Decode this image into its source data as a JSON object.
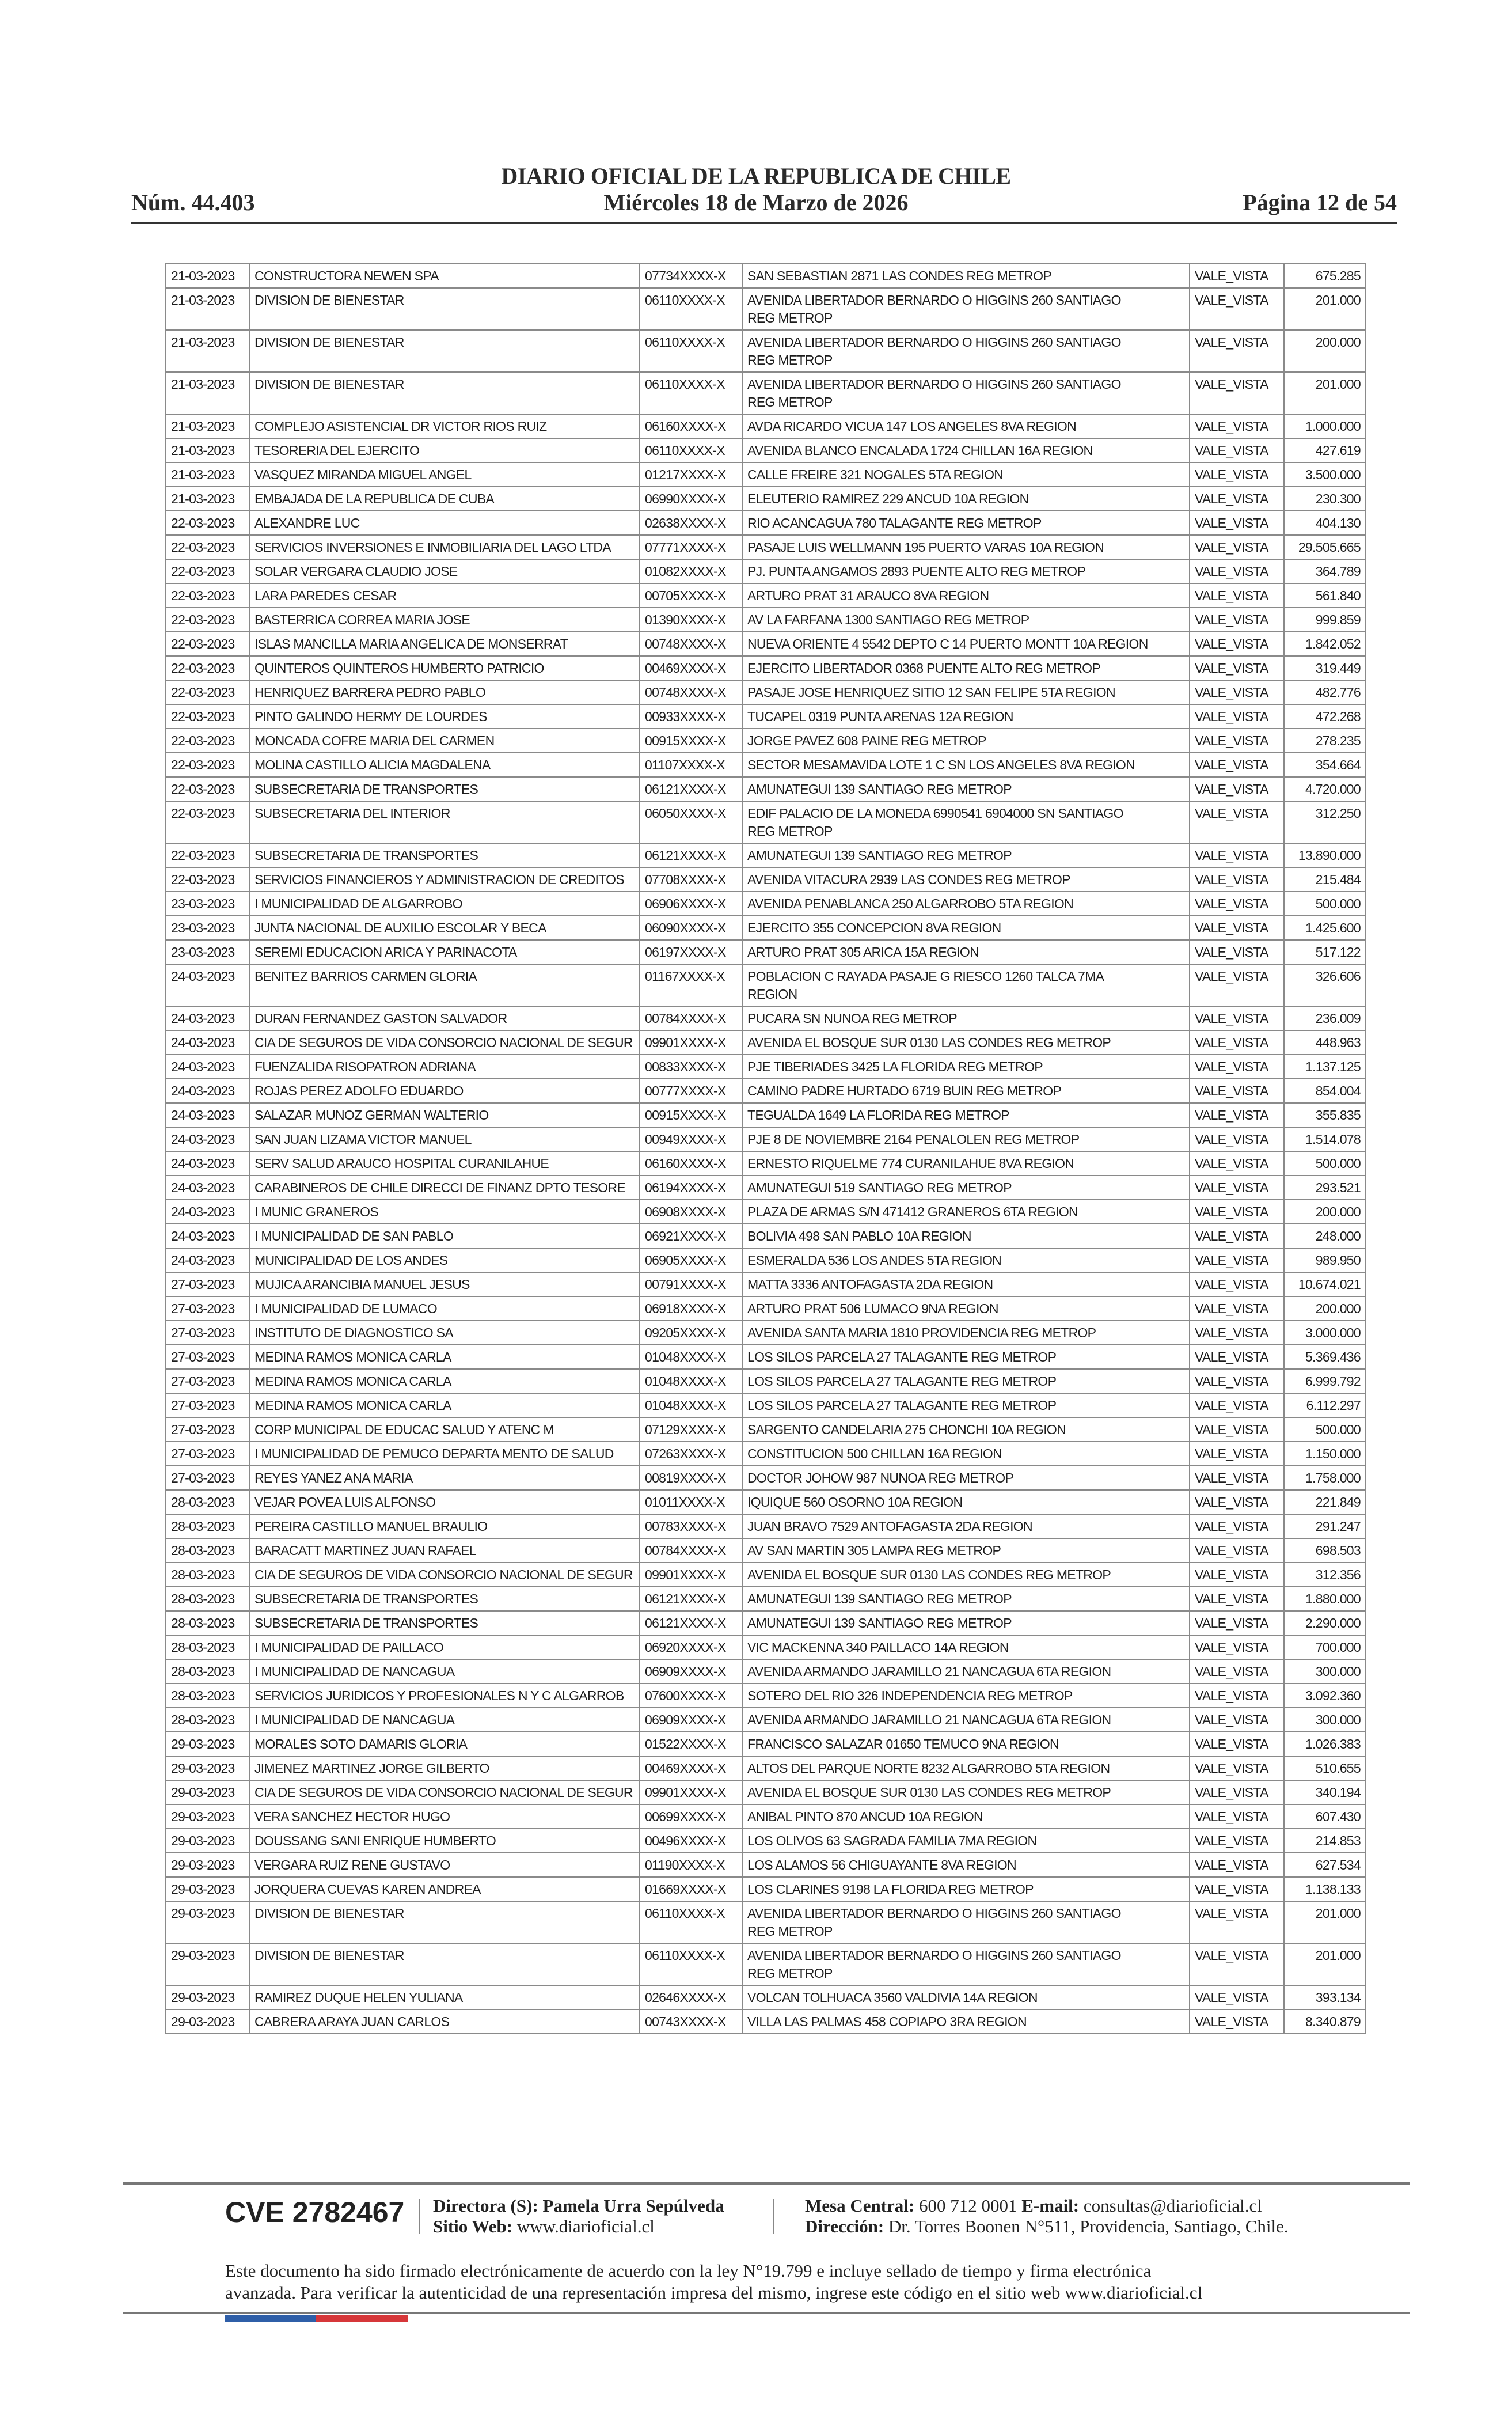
{
  "header": {
    "title": "DIARIO OFICIAL DE LA REPUBLICA DE CHILE",
    "issue": "Núm. 44.403",
    "date": "Miércoles 18 de Marzo de 2026",
    "page": "Página 12 de 54"
  },
  "table": {
    "rows": [
      [
        "21-03-2023",
        "CONSTRUCTORA NEWEN SPA",
        "07734XXXX-X",
        "SAN SEBASTIAN 2871 LAS CONDES REG METROP",
        "VALE_VISTA",
        "675.285"
      ],
      [
        "21-03-2023",
        "DIVISION DE BIENESTAR",
        "06110XXXX-X",
        "AVENIDA LIBERTADOR BERNARDO O HIGGINS 260 SANTIAGO REG METROP",
        "VALE_VISTA",
        "201.000"
      ],
      [
        "21-03-2023",
        "DIVISION DE BIENESTAR",
        "06110XXXX-X",
        "AVENIDA LIBERTADOR BERNARDO O HIGGINS 260 SANTIAGO REG METROP",
        "VALE_VISTA",
        "200.000"
      ],
      [
        "21-03-2023",
        "DIVISION DE BIENESTAR",
        "06110XXXX-X",
        "AVENIDA LIBERTADOR BERNARDO O HIGGINS 260 SANTIAGO REG METROP",
        "VALE_VISTA",
        "201.000"
      ],
      [
        "21-03-2023",
        "COMPLEJO ASISTENCIAL DR VICTOR RIOS RUIZ",
        "06160XXXX-X",
        "AVDA RICARDO VICUA 147 LOS ANGELES 8VA REGION",
        "VALE_VISTA",
        "1.000.000"
      ],
      [
        "21-03-2023",
        "TESORERIA DEL EJERCITO",
        "06110XXXX-X",
        "AVENIDA BLANCO ENCALADA 1724 CHILLAN 16A REGION",
        "VALE_VISTA",
        "427.619"
      ],
      [
        "21-03-2023",
        "VASQUEZ MIRANDA MIGUEL ANGEL",
        "01217XXXX-X",
        "CALLE FREIRE 321 NOGALES 5TA REGION",
        "VALE_VISTA",
        "3.500.000"
      ],
      [
        "21-03-2023",
        "EMBAJADA DE LA REPUBLICA DE CUBA",
        "06990XXXX-X",
        "ELEUTERIO RAMIREZ 229 ANCUD 10A REGION",
        "VALE_VISTA",
        "230.300"
      ],
      [
        "22-03-2023",
        "ALEXANDRE  LUC",
        "02638XXXX-X",
        "RIO ACANCAGUA 780 TALAGANTE REG METROP",
        "VALE_VISTA",
        "404.130"
      ],
      [
        "22-03-2023",
        "SERVICIOS INVERSIONES E INMOBILIARIA DEL LAGO LTDA",
        "07771XXXX-X",
        "PASAJE LUIS WELLMANN 195 PUERTO VARAS 10A REGION",
        "VALE_VISTA",
        "29.505.665"
      ],
      [
        "22-03-2023",
        "SOLAR VERGARA CLAUDIO JOSE",
        "01082XXXX-X",
        "PJ. PUNTA ANGAMOS 2893 PUENTE ALTO REG METROP",
        "VALE_VISTA",
        "364.789"
      ],
      [
        "22-03-2023",
        "LARA PAREDES CESAR",
        "00705XXXX-X",
        "ARTURO PRAT 31 ARAUCO 8VA REGION",
        "VALE_VISTA",
        "561.840"
      ],
      [
        "22-03-2023",
        "BASTERRICA CORREA MARIA JOSE",
        "01390XXXX-X",
        "AV LA FARFANA 1300 SANTIAGO REG METROP",
        "VALE_VISTA",
        "999.859"
      ],
      [
        "22-03-2023",
        "ISLAS MANCILLA MARIA ANGELICA DE MONSERRAT",
        "00748XXXX-X",
        "NUEVA ORIENTE 4 5542 DEPTO C 14 PUERTO MONTT 10A REGION",
        "VALE_VISTA",
        "1.842.052"
      ],
      [
        "22-03-2023",
        "QUINTEROS QUINTEROS HUMBERTO PATRICIO",
        "00469XXXX-X",
        "EJERCITO LIBERTADOR 0368 PUENTE ALTO REG METROP",
        "VALE_VISTA",
        "319.449"
      ],
      [
        "22-03-2023",
        "HENRIQUEZ BARRERA PEDRO PABLO",
        "00748XXXX-X",
        "PASAJE JOSE HENRIQUEZ SITIO 12 SAN FELIPE 5TA REGION",
        "VALE_VISTA",
        "482.776"
      ],
      [
        "22-03-2023",
        "PINTO GALINDO HERMY DE LOURDES",
        "00933XXXX-X",
        "TUCAPEL 0319 PUNTA ARENAS 12A REGION",
        "VALE_VISTA",
        "472.268"
      ],
      [
        "22-03-2023",
        "MONCADA COFRE MARIA DEL CARMEN",
        "00915XXXX-X",
        "JORGE PAVEZ 608 PAINE REG METROP",
        "VALE_VISTA",
        "278.235"
      ],
      [
        "22-03-2023",
        "MOLINA CASTILLO ALICIA MAGDALENA",
        "01107XXXX-X",
        "SECTOR MESAMAVIDA LOTE 1 C SN LOS ANGELES 8VA REGION",
        "VALE_VISTA",
        "354.664"
      ],
      [
        "22-03-2023",
        "SUBSECRETARIA DE TRANSPORTES",
        "06121XXXX-X",
        "AMUNATEGUI 139 SANTIAGO REG METROP",
        "VALE_VISTA",
        "4.720.000"
      ],
      [
        "22-03-2023",
        "SUBSECRETARIA DEL INTERIOR",
        "06050XXXX-X",
        "EDIF PALACIO DE LA MONEDA 6990541 6904000 SN SANTIAGO REG METROP",
        "VALE_VISTA",
        "312.250"
      ],
      [
        "22-03-2023",
        "SUBSECRETARIA DE TRANSPORTES",
        "06121XXXX-X",
        "AMUNATEGUI 139 SANTIAGO REG METROP",
        "VALE_VISTA",
        "13.890.000"
      ],
      [
        "22-03-2023",
        "SERVICIOS FINANCIEROS Y ADMINISTRACION DE CREDITOS",
        "07708XXXX-X",
        "AVENIDA VITACURA 2939 LAS CONDES REG METROP",
        "VALE_VISTA",
        "215.484"
      ],
      [
        "23-03-2023",
        "I MUNICIPALIDAD DE ALGARROBO",
        "06906XXXX-X",
        "AVENIDA PENABLANCA 250 ALGARROBO 5TA REGION",
        "VALE_VISTA",
        "500.000"
      ],
      [
        "23-03-2023",
        "JUNTA NACIONAL DE AUXILIO ESCOLAR Y BECA",
        "06090XXXX-X",
        "EJERCITO 355 CONCEPCION 8VA REGION",
        "VALE_VISTA",
        "1.425.600"
      ],
      [
        "23-03-2023",
        "SEREMI EDUCACION ARICA Y PARINACOTA",
        "06197XXXX-X",
        "ARTURO PRAT 305 ARICA 15A REGION",
        "VALE_VISTA",
        "517.122"
      ],
      [
        "24-03-2023",
        "BENITEZ BARRIOS CARMEN GLORIA",
        "01167XXXX-X",
        "POBLACION C RAYADA PASAJE G RIESCO 1260 TALCA 7MA REGION",
        "VALE_VISTA",
        "326.606"
      ],
      [
        "24-03-2023",
        "DURAN FERNANDEZ GASTON SALVADOR",
        "00784XXXX-X",
        "PUCARA SN NUNOA REG METROP",
        "VALE_VISTA",
        "236.009"
      ],
      [
        "24-03-2023",
        "CIA DE SEGUROS DE VIDA CONSORCIO NACIONAL DE SEGUR",
        "09901XXXX-X",
        "AVENIDA EL BOSQUE SUR 0130 LAS CONDES REG METROP",
        "VALE_VISTA",
        "448.963"
      ],
      [
        "24-03-2023",
        "FUENZALIDA RISOPATRON ADRIANA",
        "00833XXXX-X",
        "PJE TIBERIADES 3425 LA FLORIDA REG METROP",
        "VALE_VISTA",
        "1.137.125"
      ],
      [
        "24-03-2023",
        "ROJAS PEREZ ADOLFO EDUARDO",
        "00777XXXX-X",
        "CAMINO PADRE HURTADO 6719 BUIN REG METROP",
        "VALE_VISTA",
        "854.004"
      ],
      [
        "24-03-2023",
        "SALAZAR MUNOZ GERMAN WALTERIO",
        "00915XXXX-X",
        "TEGUALDA 1649 LA FLORIDA REG METROP",
        "VALE_VISTA",
        "355.835"
      ],
      [
        "24-03-2023",
        "SAN JUAN LIZAMA VICTOR MANUEL",
        "00949XXXX-X",
        "PJE 8 DE NOVIEMBRE 2164 PENALOLEN REG METROP",
        "VALE_VISTA",
        "1.514.078"
      ],
      [
        "24-03-2023",
        "SERV SALUD ARAUCO HOSPITAL CURANILAHUE",
        "06160XXXX-X",
        "ERNESTO RIQUELME 774 CURANILAHUE 8VA REGION",
        "VALE_VISTA",
        "500.000"
      ],
      [
        "24-03-2023",
        "CARABINEROS DE CHILE DIRECCI DE FINANZ DPTO TESORE",
        "06194XXXX-X",
        "AMUNATEGUI 519 SANTIAGO REG METROP",
        "VALE_VISTA",
        "293.521"
      ],
      [
        "24-03-2023",
        "I MUNIC GRANEROS",
        "06908XXXX-X",
        "PLAZA DE ARMAS S/N 471412 GRANEROS 6TA REGION",
        "VALE_VISTA",
        "200.000"
      ],
      [
        "24-03-2023",
        "I MUNICIPALIDAD DE SAN PABLO",
        "06921XXXX-X",
        "BOLIVIA 498 SAN PABLO 10A REGION",
        "VALE_VISTA",
        "248.000"
      ],
      [
        "24-03-2023",
        "MUNICIPALIDAD DE LOS ANDES",
        "06905XXXX-X",
        "ESMERALDA 536 LOS ANDES 5TA REGION",
        "VALE_VISTA",
        "989.950"
      ],
      [
        "27-03-2023",
        "MUJICA ARANCIBIA MANUEL JESUS",
        "00791XXXX-X",
        "MATTA 3336 ANTOFAGASTA 2DA REGION",
        "VALE_VISTA",
        "10.674.021"
      ],
      [
        "27-03-2023",
        "I MUNICIPALIDAD DE LUMACO",
        "06918XXXX-X",
        "ARTURO PRAT 506 LUMACO 9NA REGION",
        "VALE_VISTA",
        "200.000"
      ],
      [
        "27-03-2023",
        "INSTITUTO DE DIAGNOSTICO SA",
        "09205XXXX-X",
        "AVENIDA SANTA MARIA 1810 PROVIDENCIA REG METROP",
        "VALE_VISTA",
        "3.000.000"
      ],
      [
        "27-03-2023",
        "MEDINA RAMOS MONICA CARLA",
        "01048XXXX-X",
        "LOS SILOS PARCELA 27 TALAGANTE REG METROP",
        "VALE_VISTA",
        "5.369.436"
      ],
      [
        "27-03-2023",
        "MEDINA RAMOS MONICA CARLA",
        "01048XXXX-X",
        "LOS SILOS PARCELA 27 TALAGANTE REG METROP",
        "VALE_VISTA",
        "6.999.792"
      ],
      [
        "27-03-2023",
        "MEDINA RAMOS MONICA CARLA",
        "01048XXXX-X",
        "LOS SILOS PARCELA 27 TALAGANTE REG METROP",
        "VALE_VISTA",
        "6.112.297"
      ],
      [
        "27-03-2023",
        "CORP MUNICIPAL DE EDUCAC SALUD Y ATENC M",
        "07129XXXX-X",
        "SARGENTO CANDELARIA 275 CHONCHI 10A REGION",
        "VALE_VISTA",
        "500.000"
      ],
      [
        "27-03-2023",
        "I MUNICIPALIDAD DE PEMUCO DEPARTA  MENTO DE SALUD",
        "07263XXXX-X",
        "CONSTITUCION 500 CHILLAN 16A REGION",
        "VALE_VISTA",
        "1.150.000"
      ],
      [
        "27-03-2023",
        "REYES YANEZ ANA MARIA",
        "00819XXXX-X",
        "DOCTOR JOHOW 987 NUNOA REG METROP",
        "VALE_VISTA",
        "1.758.000"
      ],
      [
        "28-03-2023",
        "VEJAR POVEA LUIS ALFONSO",
        "01011XXXX-X",
        "IQUIQUE 560 OSORNO 10A REGION",
        "VALE_VISTA",
        "221.849"
      ],
      [
        "28-03-2023",
        "PEREIRA CASTILLO MANUEL BRAULIO",
        "00783XXXX-X",
        "JUAN BRAVO 7529 ANTOFAGASTA 2DA REGION",
        "VALE_VISTA",
        "291.247"
      ],
      [
        "28-03-2023",
        "BARACATT MARTINEZ JUAN RAFAEL",
        "00784XXXX-X",
        "AV SAN MARTIN 305 LAMPA REG METROP",
        "VALE_VISTA",
        "698.503"
      ],
      [
        "28-03-2023",
        "CIA DE SEGUROS DE VIDA CONSORCIO NACIONAL DE SEGUR",
        "09901XXXX-X",
        "AVENIDA EL BOSQUE SUR 0130 LAS CONDES REG METROP",
        "VALE_VISTA",
        "312.356"
      ],
      [
        "28-03-2023",
        "SUBSECRETARIA DE TRANSPORTES",
        "06121XXXX-X",
        "AMUNATEGUI 139 SANTIAGO REG METROP",
        "VALE_VISTA",
        "1.880.000"
      ],
      [
        "28-03-2023",
        "SUBSECRETARIA DE TRANSPORTES",
        "06121XXXX-X",
        "AMUNATEGUI 139 SANTIAGO REG METROP",
        "VALE_VISTA",
        "2.290.000"
      ],
      [
        "28-03-2023",
        "I MUNICIPALIDAD DE PAILLACO",
        "06920XXXX-X",
        "VIC MACKENNA 340 PAILLACO 14A REGION",
        "VALE_VISTA",
        "700.000"
      ],
      [
        "28-03-2023",
        "I MUNICIPALIDAD DE NANCAGUA",
        "06909XXXX-X",
        "AVENIDA ARMANDO JARAMILLO 21 NANCAGUA 6TA REGION",
        "VALE_VISTA",
        "300.000"
      ],
      [
        "28-03-2023",
        "SERVICIOS JURIDICOS Y PROFESIONALES N Y C ALGARROB",
        "07600XXXX-X",
        "SOTERO DEL RIO 326 INDEPENDENCIA REG METROP",
        "VALE_VISTA",
        "3.092.360"
      ],
      [
        "28-03-2023",
        "I MUNICIPALIDAD DE NANCAGUA",
        "06909XXXX-X",
        "AVENIDA ARMANDO JARAMILLO 21 NANCAGUA 6TA REGION",
        "VALE_VISTA",
        "300.000"
      ],
      [
        "29-03-2023",
        "MORALES SOTO DAMARIS GLORIA",
        "01522XXXX-X",
        "FRANCISCO SALAZAR 01650 TEMUCO 9NA REGION",
        "VALE_VISTA",
        "1.026.383"
      ],
      [
        "29-03-2023",
        "JIMENEZ MARTINEZ JORGE GILBERTO",
        "00469XXXX-X",
        "ALTOS DEL PARQUE NORTE 8232 ALGARROBO 5TA REGION",
        "VALE_VISTA",
        "510.655"
      ],
      [
        "29-03-2023",
        "CIA DE SEGUROS DE VIDA CONSORCIO NACIONAL DE SEGUR",
        "09901XXXX-X",
        "AVENIDA EL BOSQUE SUR 0130 LAS CONDES REG METROP",
        "VALE_VISTA",
        "340.194"
      ],
      [
        "29-03-2023",
        "VERA SANCHEZ HECTOR HUGO",
        "00699XXXX-X",
        "ANIBAL PINTO 870 ANCUD 10A REGION",
        "VALE_VISTA",
        "607.430"
      ],
      [
        "29-03-2023",
        "DOUSSANG SANI ENRIQUE HUMBERTO",
        "00496XXXX-X",
        "LOS OLIVOS 63 SAGRADA FAMILIA 7MA REGION",
        "VALE_VISTA",
        "214.853"
      ],
      [
        "29-03-2023",
        "VERGARA RUIZ RENE GUSTAVO",
        "01190XXXX-X",
        "LOS ALAMOS 56 CHIGUAYANTE 8VA REGION",
        "VALE_VISTA",
        "627.534"
      ],
      [
        "29-03-2023",
        "JORQUERA CUEVAS KAREN ANDREA",
        "01669XXXX-X",
        "LOS CLARINES 9198 LA FLORIDA REG METROP",
        "VALE_VISTA",
        "1.138.133"
      ],
      [
        "29-03-2023",
        "DIVISION DE BIENESTAR",
        "06110XXXX-X",
        "AVENIDA LIBERTADOR BERNARDO O HIGGINS 260 SANTIAGO REG METROP",
        "VALE_VISTA",
        "201.000"
      ],
      [
        "29-03-2023",
        "DIVISION DE BIENESTAR",
        "06110XXXX-X",
        "AVENIDA LIBERTADOR BERNARDO O HIGGINS 260 SANTIAGO REG METROP",
        "VALE_VISTA",
        "201.000"
      ],
      [
        "29-03-2023",
        "RAMIREZ DUQUE HELEN YULIANA",
        "02646XXXX-X",
        "VOLCAN TOLHUACA 3560 VALDIVIA 14A REGION",
        "VALE_VISTA",
        "393.134"
      ],
      [
        "29-03-2023",
        "CABRERA ARAYA JUAN CARLOS",
        "00743XXXX-X",
        "VILLA LAS PALMAS 458 COPIAPO 3RA REGION",
        "VALE_VISTA",
        "8.340.879"
      ]
    ]
  },
  "footer": {
    "cve": "CVE 2782467",
    "director_label": "Directora (S):",
    "director_name": "Pamela Urra Sepúlveda",
    "website_label": "Sitio Web:",
    "website": "www.diarioficial.cl",
    "phone_label": "Mesa Central:",
    "phone": "600 712 0001",
    "email_label": "E-mail:",
    "email": "consultas@diarioficial.cl",
    "address_label": "Dirección:",
    "address": "Dr. Torres Boonen N°511, Providencia, Santiago, Chile.",
    "disclaimer_line1": "Este documento ha sido firmado electrónicamente de acuerdo con la ley N°19.799 e incluye sellado de tiempo y firma electrónica",
    "disclaimer_line2": "avanzada. Para verificar la autenticidad de una representación impresa del mismo, ingrese este código en el sitio web www.diarioficial.cl",
    "accent_blue": "#2f5fa8",
    "accent_red": "#d6373a"
  }
}
